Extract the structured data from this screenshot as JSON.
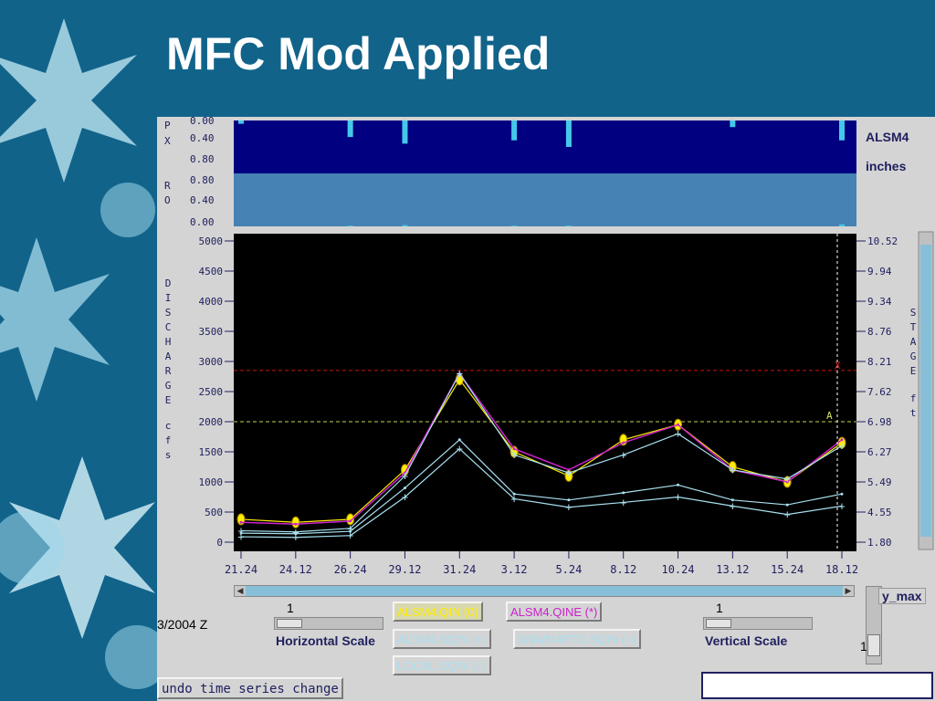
{
  "slide": {
    "title": "MFC Mod Applied"
  },
  "colors": {
    "slide_background": "#11638a",
    "precip_panel": "#000080",
    "runoff_panel": "#4682b4",
    "plot_background": "#000000",
    "observed_qin": "#ffee00",
    "simulated_qine": "#cc22cc",
    "sqin": "#a8e0f0",
    "flood_line": "#cc1010",
    "action_line": "#c8d050"
  },
  "app": {
    "px_label": "P\nX",
    "ro_label": "R\nO",
    "px_ticks": [
      "0.00",
      "0.40",
      "0.80"
    ],
    "ro_ticks": [
      "0.80",
      "0.40",
      "0.00"
    ],
    "station": "ALSM4",
    "units": "inches",
    "left_axis_label": "DISCHARGE cfs",
    "right_axis_label": "STAGE ft",
    "discharge_ticks": [
      "5000",
      "4500",
      "4000",
      "3500",
      "3000",
      "2500",
      "2000",
      "1500",
      "1000",
      "500",
      "0"
    ],
    "stage_ticks": [
      "10.52",
      "9.94",
      "9.34",
      "8.76",
      "8.21",
      "7.62",
      "6.98",
      "6.27",
      "5.49",
      "4.55",
      "1.80"
    ],
    "date_ticks": [
      "21.24",
      "24.12",
      "26.24",
      "29.12",
      "31.24",
      "3.12",
      "5.24",
      "8.12",
      "10.24",
      "13.12",
      "15.24",
      "18.12"
    ],
    "flood_marker": "X",
    "action_marker": "A",
    "date_fragment": "3/2004 Z",
    "legend": {
      "qin": "ALSM4.QIN  (0)",
      "qine": "ALSM4.QINE (*)",
      "sqin": "ALSM4.SQIN (+)",
      "snwm": "SNWM4RTD.SQIN (=)",
      "local": "LOCAL.SQIN (L)"
    },
    "horizontal_scale": {
      "value": "1",
      "label": "Horizontal Scale",
      "position": 0.05
    },
    "vertical_scale": {
      "value": "1",
      "label": "Vertical Scale",
      "position": 0.05
    },
    "y_max": {
      "label": "y_max",
      "value": "1"
    },
    "undo_button": "undo time series change"
  },
  "chart_data": {
    "type": "line",
    "title": "",
    "xlabel": "",
    "ylabel": "DISCHARGE cfs",
    "y2label": "STAGE ft",
    "ylim": [
      0,
      5000
    ],
    "x": [
      "21.24",
      "24.12",
      "26.24",
      "29.12",
      "31.24",
      "3.12",
      "5.24",
      "8.12",
      "10.24",
      "13.12",
      "15.24",
      "18.12"
    ],
    "flood_flow": 2850,
    "action_flow": 2000,
    "series": [
      {
        "name": "ALSM4.QIN  (0)",
        "values": [
          380,
          330,
          380,
          1200,
          2700,
          1500,
          1100,
          1700,
          1950,
          1250,
          1000,
          1650
        ]
      },
      {
        "name": "ALSM4.QINE (*)",
        "values": [
          330,
          300,
          350,
          1150,
          2800,
          1550,
          1200,
          1650,
          1950,
          1200,
          1000,
          1700
        ]
      },
      {
        "name": "ALSM4.SQIN (+)",
        "values": [
          190,
          170,
          230,
          1100,
          2800,
          1450,
          1150,
          1450,
          1800,
          1200,
          1050,
          1600
        ]
      },
      {
        "name": "SNWM4RTD.SQIN (=)",
        "values": [
          150,
          140,
          180,
          900,
          1700,
          800,
          700,
          820,
          950,
          700,
          620,
          800
        ]
      },
      {
        "name": "LOCAL.SQIN (L)",
        "values": [
          90,
          80,
          110,
          750,
          1550,
          720,
          580,
          660,
          750,
          600,
          460,
          600
        ]
      }
    ],
    "precip_px_inches": [
      0.05,
      0.0,
      0.25,
      0.35,
      0.0,
      0.3,
      0.4,
      0.0,
      0.0,
      0.1,
      0.0,
      0.3
    ],
    "runoff_ro_inches": [
      0.0,
      0.0,
      0.01,
      0.02,
      0.0,
      0.01,
      0.01,
      0.0,
      0.0,
      0.0,
      0.0,
      0.03
    ]
  }
}
